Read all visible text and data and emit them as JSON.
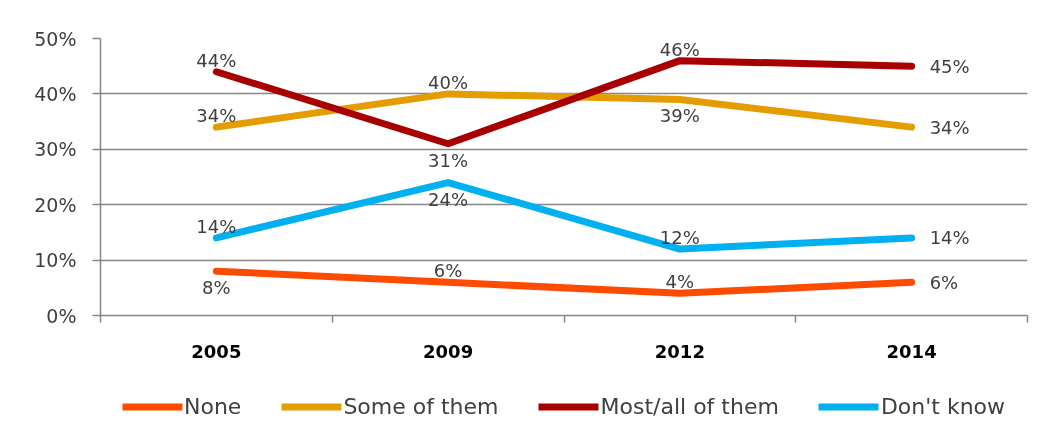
{
  "chart_data": {
    "type": "line",
    "categories": [
      "2005",
      "2009",
      "2012",
      "2014"
    ],
    "series": [
      {
        "name": "None",
        "color": "#ff4b00",
        "values": [
          8,
          6,
          4,
          6
        ],
        "value_labels": [
          "8%",
          "6%",
          "4%",
          "6%"
        ]
      },
      {
        "name": "Some of them",
        "color": "#e59c00",
        "values": [
          34,
          40,
          39,
          34
        ],
        "value_labels": [
          "34%",
          "40%",
          "39%",
          "34%"
        ]
      },
      {
        "name": "Most/all of them",
        "color": "#a80000",
        "values": [
          44,
          31,
          46,
          45
        ],
        "value_labels": [
          "44%",
          "31%",
          "46%",
          "45%"
        ]
      },
      {
        "name": "Don't know",
        "color": "#00b0f0",
        "values": [
          14,
          24,
          12,
          14
        ],
        "value_labels": [
          "14%",
          "24%",
          "12%",
          "14%"
        ]
      }
    ],
    "ylim": [
      0,
      50
    ],
    "yticks": [
      {
        "value": 0,
        "label": "0%"
      },
      {
        "value": 10,
        "label": "10%"
      },
      {
        "value": 20,
        "label": "20%"
      },
      {
        "value": 30,
        "label": "30%"
      },
      {
        "value": 40,
        "label": "40%"
      },
      {
        "value": 50,
        "label": "50%"
      }
    ],
    "grid": "y",
    "legend": "bottom",
    "marker": "none",
    "line_style": "solid"
  }
}
